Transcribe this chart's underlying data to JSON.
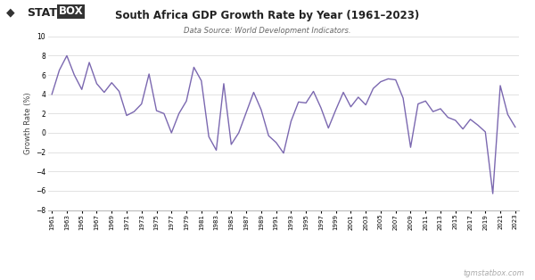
{
  "title": "South Africa GDP Growth Rate by Year (1961–2023)",
  "subtitle": "Data Source: World Development Indicators.",
  "ylabel": "Growth Rate (%)",
  "line_color": "#7B68B0",
  "legend_label": "South Africa",
  "watermark": "tgmstatbox.com",
  "bg_color": "#ffffff",
  "grid_color": "#dddddd",
  "ylim": [
    -8,
    10
  ],
  "yticks": [
    -8,
    -6,
    -4,
    -2,
    0,
    2,
    4,
    6,
    8,
    10
  ],
  "years": [
    1961,
    1962,
    1963,
    1964,
    1965,
    1966,
    1967,
    1968,
    1969,
    1970,
    1971,
    1972,
    1973,
    1974,
    1975,
    1976,
    1977,
    1978,
    1979,
    1980,
    1981,
    1982,
    1983,
    1984,
    1985,
    1986,
    1987,
    1988,
    1989,
    1990,
    1991,
    1992,
    1993,
    1994,
    1995,
    1996,
    1997,
    1998,
    1999,
    2000,
    2001,
    2002,
    2003,
    2004,
    2005,
    2006,
    2007,
    2008,
    2009,
    2010,
    2011,
    2012,
    2013,
    2014,
    2015,
    2016,
    2017,
    2018,
    2019,
    2020,
    2021,
    2022,
    2023
  ],
  "values": [
    4.0,
    6.5,
    8.0,
    6.0,
    4.5,
    7.3,
    5.1,
    4.2,
    5.2,
    4.3,
    1.8,
    2.2,
    3.0,
    6.1,
    2.3,
    2.0,
    0.0,
    2.0,
    3.3,
    6.8,
    5.4,
    -0.4,
    -1.8,
    5.1,
    -1.2,
    0.0,
    2.1,
    4.2,
    2.4,
    -0.3,
    -1.0,
    -2.1,
    1.2,
    3.2,
    3.1,
    4.3,
    2.6,
    0.5,
    2.4,
    4.2,
    2.7,
    3.7,
    2.9,
    4.6,
    5.3,
    5.6,
    5.5,
    3.6,
    -1.5,
    3.0,
    3.3,
    2.2,
    2.5,
    1.6,
    1.3,
    0.4,
    1.4,
    0.8,
    0.1,
    -6.3,
    4.9,
    1.9,
    0.6
  ],
  "xtick_years": [
    1961,
    1963,
    1965,
    1967,
    1969,
    1971,
    1973,
    1975,
    1977,
    1979,
    1981,
    1983,
    1985,
    1987,
    1989,
    1991,
    1993,
    1995,
    1997,
    1999,
    2001,
    2003,
    2005,
    2007,
    2009,
    2011,
    2013,
    2015,
    2017,
    2019,
    2021,
    2023
  ]
}
